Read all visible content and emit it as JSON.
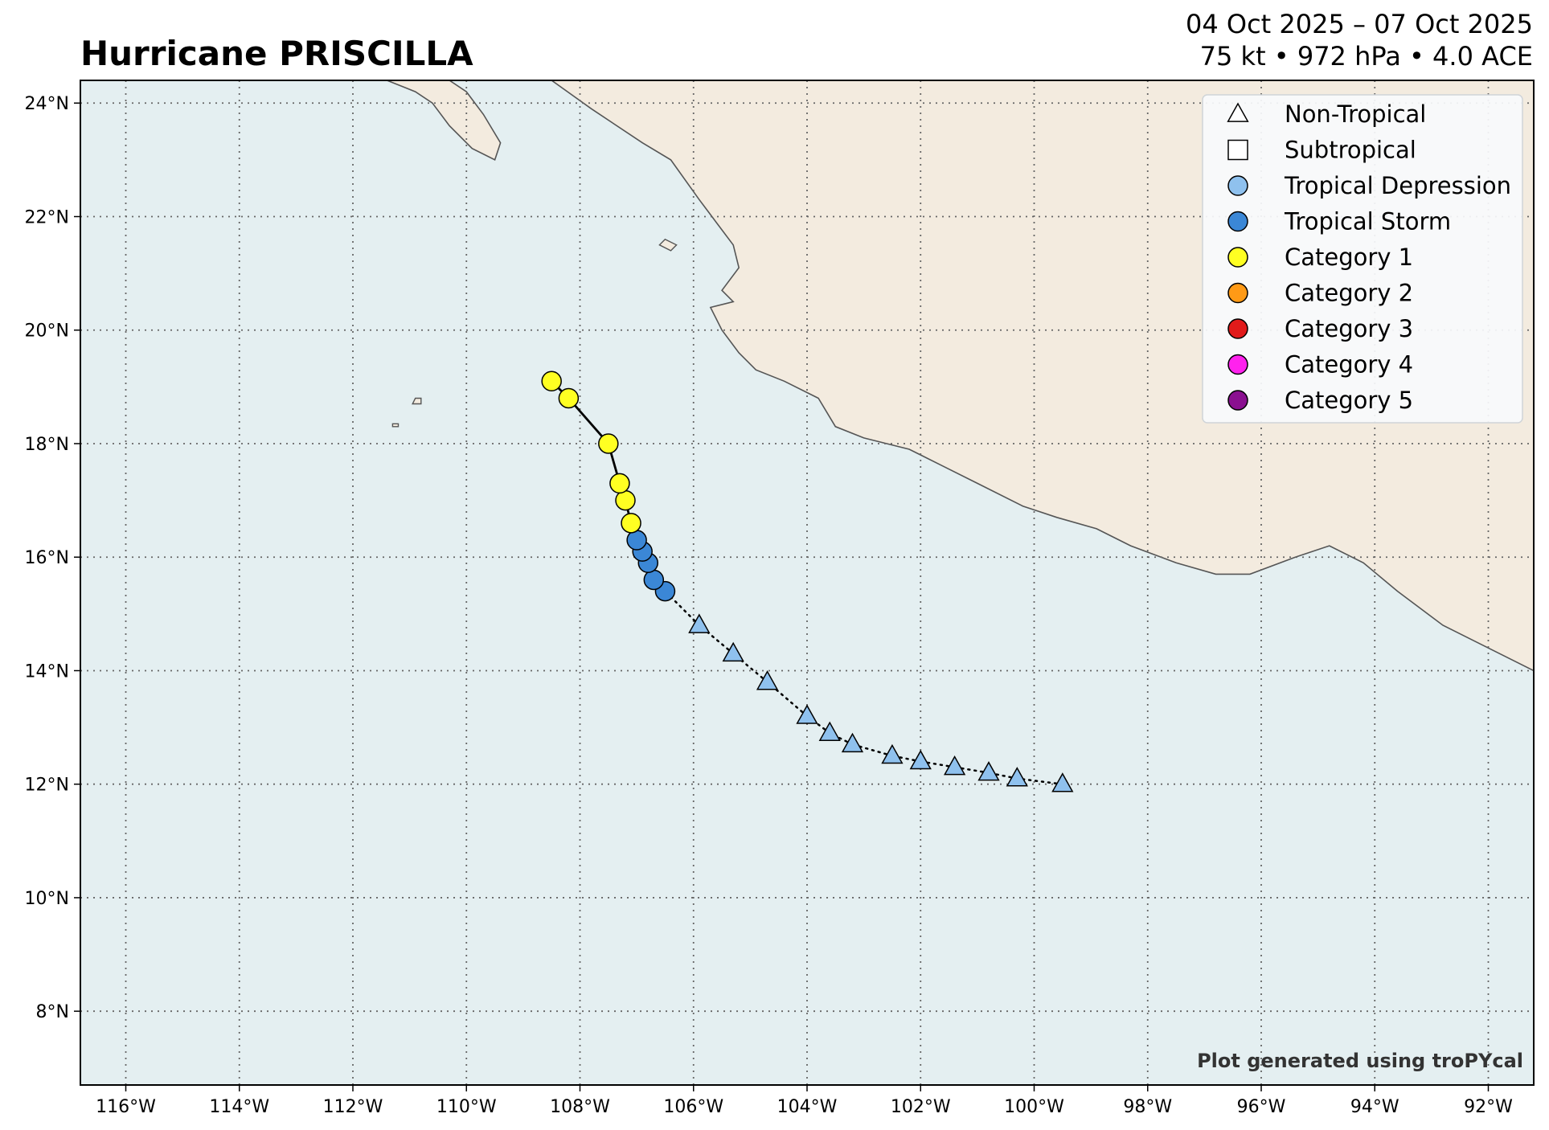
{
  "header": {
    "title": "Hurricane PRISCILLA",
    "date_range": "04 Oct 2025 – 07 Oct 2025",
    "stats": "75 kt • 972 hPa • 4.0 ACE"
  },
  "footer": {
    "credit": "Plot generated using troPYcal"
  },
  "colors": {
    "ocean": "#e4eff1",
    "land": "#f3ebdf",
    "coast": "#555555",
    "grid": "#666666",
    "non_tropical": "#ffffff",
    "subtropical": "#ffffff",
    "tropical_depression": "#8fc1ee",
    "tropical_storm": "#3b87d6",
    "category_1": "#ffff22",
    "category_2": "#ff9a16",
    "category_3": "#e11a1a",
    "category_4": "#ff22ee",
    "category_5": "#8a1090"
  },
  "map": {
    "lon_range": [
      -116.8,
      -91.2
    ],
    "lat_range": [
      6.7,
      24.4
    ],
    "lon_ticks": [
      {
        "value": -116,
        "label": "116°W"
      },
      {
        "value": -114,
        "label": "114°W"
      },
      {
        "value": -112,
        "label": "112°W"
      },
      {
        "value": -110,
        "label": "110°W"
      },
      {
        "value": -108,
        "label": "108°W"
      },
      {
        "value": -106,
        "label": "106°W"
      },
      {
        "value": -104,
        "label": "104°W"
      },
      {
        "value": -102,
        "label": "102°W"
      },
      {
        "value": -100,
        "label": "100°W"
      },
      {
        "value": -98,
        "label": "98°W"
      },
      {
        "value": -96,
        "label": "96°W"
      },
      {
        "value": -94,
        "label": "94°W"
      },
      {
        "value": -92,
        "label": "92°W"
      }
    ],
    "lat_ticks": [
      {
        "value": 8,
        "label": "8°N"
      },
      {
        "value": 10,
        "label": "10°N"
      },
      {
        "value": 12,
        "label": "12°N"
      },
      {
        "value": 14,
        "label": "14°N"
      },
      {
        "value": 16,
        "label": "16°N"
      },
      {
        "value": 18,
        "label": "18°N"
      },
      {
        "value": 20,
        "label": "20°N"
      },
      {
        "value": 22,
        "label": "22°N"
      },
      {
        "value": 24,
        "label": "24°N"
      }
    ]
  },
  "legend": {
    "placement": "top-right",
    "items": [
      {
        "label": "Non-Tropical",
        "marker": "triangle",
        "color": "#ffffff"
      },
      {
        "label": "Subtropical",
        "marker": "square",
        "color": "#ffffff"
      },
      {
        "label": "Tropical Depression",
        "marker": "circle",
        "color": "#8fc1ee"
      },
      {
        "label": "Tropical Storm",
        "marker": "circle",
        "color": "#3b87d6"
      },
      {
        "label": "Category 1",
        "marker": "circle",
        "color": "#ffff22"
      },
      {
        "label": "Category 2",
        "marker": "circle",
        "color": "#ff9a16"
      },
      {
        "label": "Category 3",
        "marker": "circle",
        "color": "#e11a1a"
      },
      {
        "label": "Category 4",
        "marker": "circle",
        "color": "#ff22ee"
      },
      {
        "label": "Category 5",
        "marker": "circle",
        "color": "#8a1090"
      }
    ]
  },
  "track": [
    {
      "lon": -99.5,
      "lat": 12.0,
      "type": "non_tropical",
      "category": "tropical_depression"
    },
    {
      "lon": -100.3,
      "lat": 12.1,
      "type": "non_tropical",
      "category": "tropical_depression"
    },
    {
      "lon": -100.8,
      "lat": 12.2,
      "type": "non_tropical",
      "category": "tropical_depression"
    },
    {
      "lon": -101.4,
      "lat": 12.3,
      "type": "non_tropical",
      "category": "tropical_depression"
    },
    {
      "lon": -102.0,
      "lat": 12.4,
      "type": "non_tropical",
      "category": "tropical_depression"
    },
    {
      "lon": -102.5,
      "lat": 12.5,
      "type": "non_tropical",
      "category": "tropical_depression"
    },
    {
      "lon": -103.2,
      "lat": 12.7,
      "type": "non_tropical",
      "category": "tropical_depression"
    },
    {
      "lon": -103.6,
      "lat": 12.9,
      "type": "non_tropical",
      "category": "tropical_depression"
    },
    {
      "lon": -104.0,
      "lat": 13.2,
      "type": "non_tropical",
      "category": "tropical_depression"
    },
    {
      "lon": -104.7,
      "lat": 13.8,
      "type": "non_tropical",
      "category": "tropical_depression"
    },
    {
      "lon": -105.3,
      "lat": 14.3,
      "type": "non_tropical",
      "category": "tropical_depression"
    },
    {
      "lon": -105.9,
      "lat": 14.8,
      "type": "non_tropical",
      "category": "tropical_depression"
    },
    {
      "lon": -106.5,
      "lat": 15.4,
      "type": "tropical",
      "category": "tropical_storm"
    },
    {
      "lon": -106.7,
      "lat": 15.6,
      "type": "tropical",
      "category": "tropical_storm"
    },
    {
      "lon": -106.8,
      "lat": 15.9,
      "type": "tropical",
      "category": "tropical_storm"
    },
    {
      "lon": -106.9,
      "lat": 16.1,
      "type": "tropical",
      "category": "tropical_storm"
    },
    {
      "lon": -107.0,
      "lat": 16.3,
      "type": "tropical",
      "category": "tropical_storm"
    },
    {
      "lon": -107.1,
      "lat": 16.6,
      "type": "tropical",
      "category": "category_1"
    },
    {
      "lon": -107.2,
      "lat": 17.0,
      "type": "tropical",
      "category": "category_1"
    },
    {
      "lon": -107.3,
      "lat": 17.3,
      "type": "tropical",
      "category": "category_1"
    },
    {
      "lon": -107.5,
      "lat": 18.0,
      "type": "tropical",
      "category": "category_1"
    },
    {
      "lon": -108.2,
      "lat": 18.8,
      "type": "tropical",
      "category": "category_1"
    },
    {
      "lon": -108.5,
      "lat": 19.1,
      "type": "tropical",
      "category": "category_1"
    }
  ],
  "land_outlines": {
    "mexico_mainland": [
      [
        -108.5,
        24.4
      ],
      [
        -107.8,
        23.9
      ],
      [
        -106.9,
        23.3
      ],
      [
        -106.4,
        23.0
      ],
      [
        -105.9,
        22.3
      ],
      [
        -105.6,
        21.9
      ],
      [
        -105.3,
        21.5
      ],
      [
        -105.2,
        21.1
      ],
      [
        -105.5,
        20.7
      ],
      [
        -105.3,
        20.5
      ],
      [
        -105.7,
        20.4
      ],
      [
        -105.5,
        20.0
      ],
      [
        -105.2,
        19.6
      ],
      [
        -104.9,
        19.3
      ],
      [
        -104.4,
        19.1
      ],
      [
        -103.8,
        18.8
      ],
      [
        -103.5,
        18.3
      ],
      [
        -103.0,
        18.1
      ],
      [
        -102.2,
        17.9
      ],
      [
        -101.6,
        17.6
      ],
      [
        -101.0,
        17.3
      ],
      [
        -100.2,
        16.9
      ],
      [
        -99.6,
        16.7
      ],
      [
        -98.9,
        16.5
      ],
      [
        -98.3,
        16.2
      ],
      [
        -97.5,
        15.9
      ],
      [
        -96.8,
        15.7
      ],
      [
        -96.2,
        15.7
      ],
      [
        -95.4,
        16.0
      ],
      [
        -94.8,
        16.2
      ],
      [
        -94.2,
        15.9
      ],
      [
        -93.6,
        15.4
      ],
      [
        -92.8,
        14.8
      ],
      [
        -92.2,
        14.5
      ],
      [
        -91.2,
        14.0
      ],
      [
        -91.2,
        24.4
      ]
    ],
    "baja_tip": [
      [
        -111.4,
        24.4
      ],
      [
        -110.9,
        24.2
      ],
      [
        -110.6,
        24.0
      ],
      [
        -110.3,
        23.6
      ],
      [
        -109.9,
        23.2
      ],
      [
        -109.5,
        23.0
      ],
      [
        -109.4,
        23.3
      ],
      [
        -109.7,
        23.8
      ],
      [
        -110.0,
        24.2
      ],
      [
        -110.3,
        24.4
      ]
    ],
    "islands": [
      [
        [
          -106.5,
          21.6
        ],
        [
          -106.3,
          21.5
        ],
        [
          -106.4,
          21.4
        ],
        [
          -106.6,
          21.5
        ]
      ],
      [
        [
          -110.9,
          18.8
        ],
        [
          -110.8,
          18.8
        ],
        [
          -110.8,
          18.7
        ],
        [
          -110.95,
          18.7
        ]
      ],
      [
        [
          -111.3,
          18.35
        ],
        [
          -111.2,
          18.35
        ],
        [
          -111.2,
          18.3
        ],
        [
          -111.3,
          18.3
        ]
      ]
    ]
  }
}
